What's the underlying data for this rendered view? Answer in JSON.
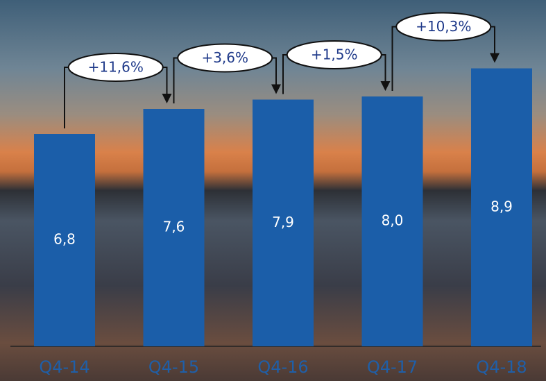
{
  "chart_data": {
    "type": "bar",
    "categories": [
      "Q4-14",
      "Q4-15",
      "Q4-16",
      "Q4-17",
      "Q4-18"
    ],
    "values": [
      6.8,
      7.6,
      7.9,
      8.0,
      8.9
    ],
    "value_labels": [
      "6,8",
      "7,6",
      "7,9",
      "8,0",
      "8,9"
    ],
    "color": "#1b5ea9",
    "annotations": [
      "+11,6%",
      "+3,6%",
      "+1,5%",
      "+10,3%"
    ]
  }
}
